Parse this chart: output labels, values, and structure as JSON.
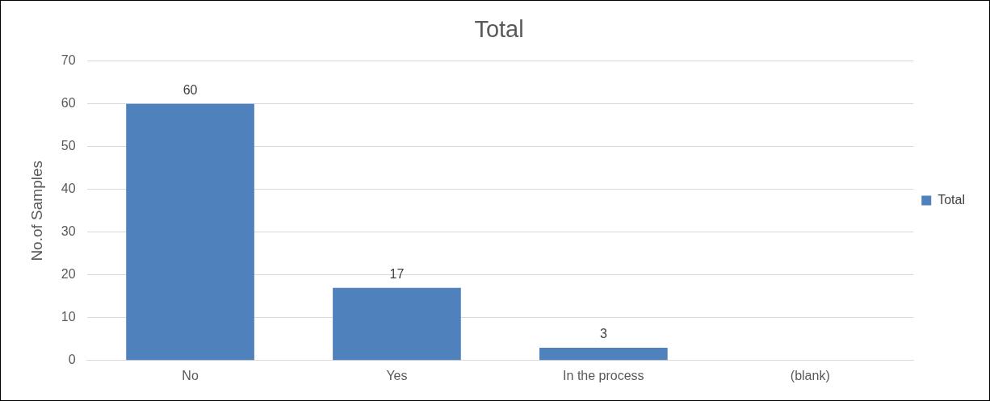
{
  "chart_data": {
    "type": "bar",
    "title": "Total",
    "ylabel": "No.of Samples",
    "categories": [
      "No",
      "Yes",
      "In the process",
      "(blank)"
    ],
    "series": [
      {
        "name": "Total",
        "color": "#4f81bd",
        "values": [
          60,
          17,
          3,
          null
        ]
      }
    ],
    "ylim": [
      0,
      70
    ],
    "yticks": [
      0,
      10,
      20,
      30,
      40,
      50,
      60,
      70
    ],
    "grid": "y",
    "legend": "right",
    "data_labels": true
  }
}
